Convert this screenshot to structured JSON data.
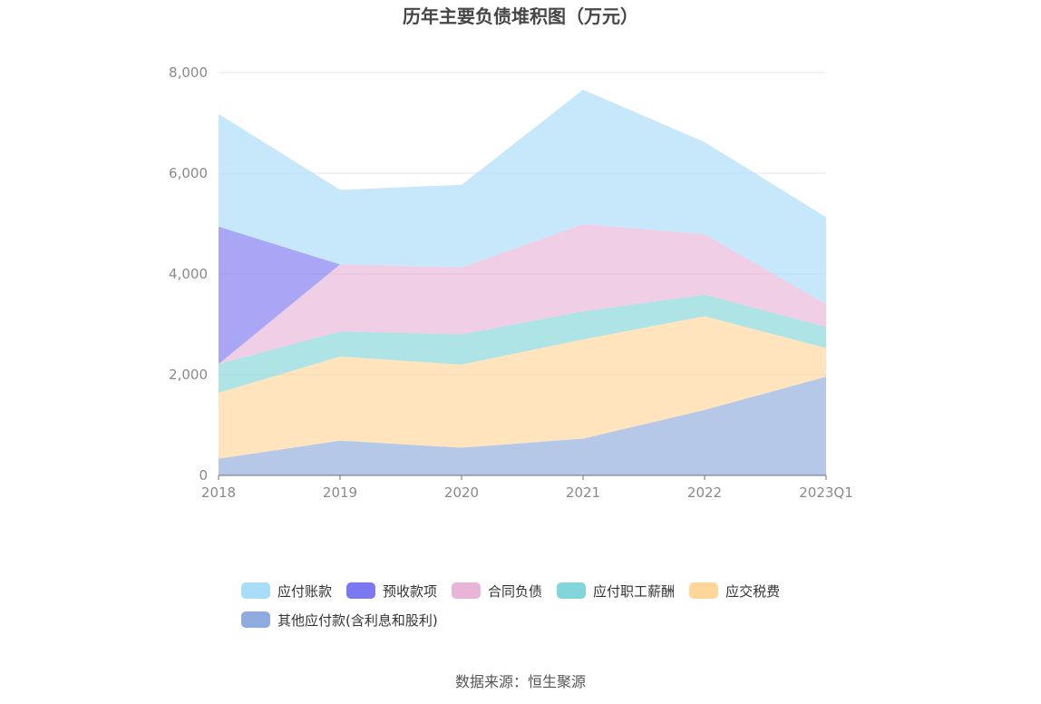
{
  "chart_data": {
    "type": "area",
    "stacked": true,
    "title": "历年主要负债堆积图（万元）",
    "categories": [
      "2018",
      "2019",
      "2020",
      "2021",
      "2022",
      "2023Q1"
    ],
    "ylim": [
      0,
      8000
    ],
    "yticks": [
      "0",
      "2,000",
      "4,000",
      "6,000",
      "8,000"
    ],
    "grid": true,
    "legend_position": "bottom",
    "series": [
      {
        "name": "其他应付款(含利息和股利)",
        "color": "#8faadc",
        "values": [
          330,
          690,
          550,
          730,
          1300,
          1960
        ]
      },
      {
        "name": "应交税费",
        "color": "#ffd699",
        "values": [
          1310,
          1670,
          1650,
          1970,
          1860,
          570
        ]
      },
      {
        "name": "应付职工薪酬",
        "color": "#82d5d9",
        "values": [
          570,
          500,
          600,
          560,
          430,
          420
        ]
      },
      {
        "name": "合同负债",
        "color": "#e8b4d8",
        "values": [
          0,
          1330,
          1330,
          1730,
          1200,
          450
        ]
      },
      {
        "name": "预收款项",
        "color": "#7b78f0",
        "values": [
          2730,
          0,
          0,
          0,
          0,
          0
        ]
      },
      {
        "name": "应付账款",
        "color": "#a8dcf7",
        "values": [
          2240,
          1480,
          1640,
          2670,
          1830,
          1730
        ]
      }
    ]
  },
  "legend": [
    {
      "label": "应付账款",
      "color": "#a8dcf7"
    },
    {
      "label": "预收款项",
      "color": "#7b78f0"
    },
    {
      "label": "合同负债",
      "color": "#e8b4d8"
    },
    {
      "label": "应付职工薪酬",
      "color": "#82d5d9"
    },
    {
      "label": "应交税费",
      "color": "#ffd699"
    },
    {
      "label": "其他应付款(含利息和股利)",
      "color": "#8faadc"
    }
  ],
  "source": "数据来源：恒生聚源"
}
